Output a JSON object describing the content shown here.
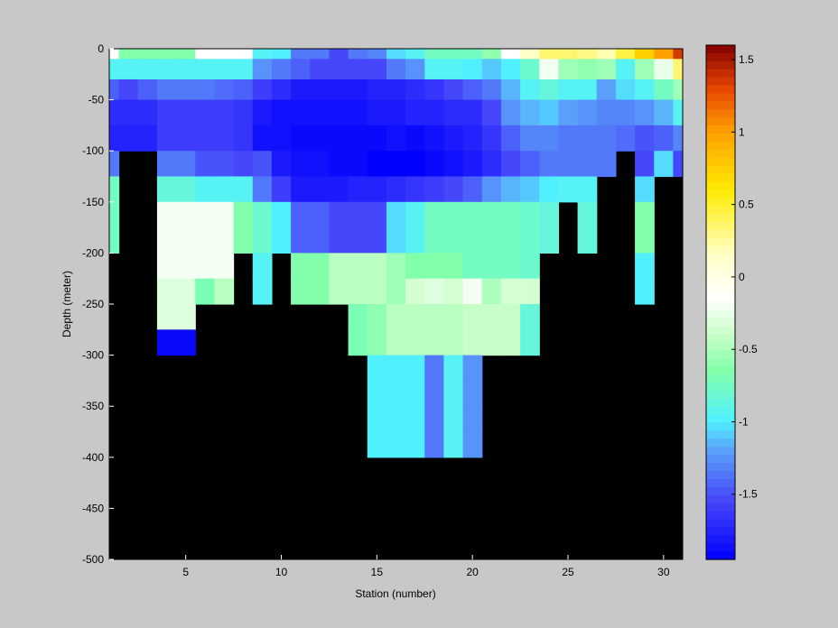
{
  "chart_data": {
    "type": "heatmap",
    "xlabel": "Station (number)",
    "ylabel": "Depth (meter)",
    "xlim": [
      1,
      31
    ],
    "ylim": [
      -500,
      0
    ],
    "xticks": [
      5,
      10,
      15,
      20,
      25,
      30
    ],
    "yticks": [
      0,
      -50,
      -100,
      -150,
      -200,
      -250,
      -300,
      -350,
      -400,
      -450,
      -500
    ],
    "colorbar": {
      "colormap": "jet",
      "clim": [
        -1.95,
        1.6
      ],
      "ticks": [
        1.5,
        1,
        0.5,
        0,
        -0.5,
        -1,
        -1.5
      ]
    },
    "missing_color": "#000000",
    "columns": [
      {
        "station": 1,
        "depths": [
          -5,
          -20,
          -40,
          -70,
          -100,
          -125,
          -150,
          -175
        ],
        "values": [
          -0.15,
          -0.95,
          -1.45,
          -1.7,
          -1.75,
          -1.35,
          -0.75,
          -0.75
        ]
      },
      {
        "station": 2,
        "depths": [
          -5,
          -20,
          -40,
          -70,
          -100
        ],
        "values": [
          -0.65,
          -0.95,
          -1.55,
          -1.7,
          -1.75
        ]
      },
      {
        "station": 3,
        "depths": [
          -5,
          -20,
          -40,
          -70,
          -100
        ],
        "values": [
          -0.65,
          -0.95,
          -1.45,
          -1.7,
          -1.75
        ]
      },
      {
        "station": 4,
        "depths": [
          -5,
          -20,
          -40,
          -70,
          -100,
          -125,
          -150,
          -175,
          -200,
          -225,
          -250,
          -275
        ],
        "values": [
          -0.65,
          -0.95,
          -1.35,
          -1.6,
          -1.6,
          -1.35,
          -0.85,
          -0.2,
          -0.2,
          -0.3,
          -0.3,
          -1.9
        ]
      },
      {
        "station": 5,
        "depths": [
          -5,
          -20,
          -40,
          -70,
          -100,
          -125,
          -150,
          -175,
          -200,
          -225,
          -250,
          -275
        ],
        "values": [
          -0.65,
          -0.95,
          -1.35,
          -1.6,
          -1.6,
          -1.35,
          -0.85,
          -0.2,
          -0.2,
          -0.3,
          -0.3,
          -1.9
        ]
      },
      {
        "station": 6,
        "depths": [
          -5,
          -20,
          -40,
          -70,
          -100,
          -125,
          -150,
          -175,
          -200,
          -225
        ],
        "values": [
          -0.15,
          -0.95,
          -1.35,
          -1.6,
          -1.6,
          -1.5,
          -0.95,
          -0.2,
          -0.2,
          -0.7
        ]
      },
      {
        "station": 7,
        "depths": [
          -5,
          -20,
          -40,
          -70,
          -100,
          -125,
          -150,
          -175,
          -200,
          -225
        ],
        "values": [
          -0.15,
          -0.95,
          -1.4,
          -1.6,
          -1.6,
          -1.5,
          -0.95,
          -0.2,
          -0.2,
          -0.45
        ]
      },
      {
        "station": 8,
        "depths": [
          -5,
          -20,
          -40,
          -70,
          -100,
          -125,
          -150,
          -175
        ],
        "values": [
          -0.15,
          -0.95,
          -1.45,
          -1.65,
          -1.65,
          -1.55,
          -0.95,
          -0.65
        ]
      },
      {
        "station": 9,
        "depths": [
          -5,
          -20,
          -40,
          -70,
          -100,
          -125,
          -150,
          -175,
          -200,
          -225
        ],
        "values": [
          -0.95,
          -1.25,
          -1.6,
          -1.8,
          -1.85,
          -1.5,
          -1.35,
          -0.8,
          -0.95,
          -0.95
        ]
      },
      {
        "station": 10,
        "depths": [
          -5,
          -20,
          -40,
          -70,
          -100,
          -125,
          -150,
          -175
        ],
        "values": [
          -1.0,
          -1.35,
          -1.7,
          -1.85,
          -1.85,
          -1.8,
          -1.6,
          -1.0
        ]
      },
      {
        "station": 11,
        "depths": [
          -5,
          -20,
          -40,
          -70,
          -100,
          -125,
          -150,
          -175,
          -200,
          -225
        ],
        "values": [
          -1.35,
          -1.45,
          -1.8,
          -1.85,
          -1.9,
          -1.85,
          -1.8,
          -1.45,
          -0.65,
          -0.65
        ]
      },
      {
        "station": 12,
        "depths": [
          -5,
          -20,
          -40,
          -70,
          -100,
          -125,
          -150,
          -175,
          -200,
          -225
        ],
        "values": [
          -1.35,
          -1.55,
          -1.8,
          -1.85,
          -1.9,
          -1.85,
          -1.8,
          -1.45,
          -0.65,
          -0.65
        ]
      },
      {
        "station": 13,
        "depths": [
          -5,
          -20,
          -40,
          -70,
          -100,
          -125,
          -150,
          -175,
          -200,
          -225
        ],
        "values": [
          -1.55,
          -1.55,
          -1.8,
          -1.85,
          -1.9,
          -1.9,
          -1.8,
          -1.55,
          -0.45,
          -0.45
        ]
      },
      {
        "station": 14,
        "depths": [
          -5,
          -20,
          -40,
          -70,
          -100,
          -125,
          -150,
          -175,
          -200,
          -225,
          -250,
          -275
        ],
        "values": [
          -1.35,
          -1.55,
          -1.8,
          -1.85,
          -1.9,
          -1.9,
          -1.75,
          -1.55,
          -0.45,
          -0.45,
          -0.7,
          -0.7
        ]
      },
      {
        "station": 15,
        "depths": [
          -5,
          -20,
          -40,
          -70,
          -100,
          -125,
          -150,
          -175,
          -200,
          -225,
          -250,
          -275,
          -300,
          -325,
          -350,
          -375
        ],
        "values": [
          -1.3,
          -1.55,
          -1.75,
          -1.8,
          -1.9,
          -1.95,
          -1.75,
          -1.55,
          -0.45,
          -0.45,
          -0.6,
          -0.6,
          -1.0,
          -1.0,
          -1.0,
          -1.0
        ]
      },
      {
        "station": 16,
        "depths": [
          -5,
          -20,
          -40,
          -70,
          -100,
          -125,
          -150,
          -175,
          -200,
          -225,
          -250,
          -275,
          -300,
          -325,
          -350,
          -375
        ],
        "values": [
          -1.05,
          -1.35,
          -1.75,
          -1.8,
          -1.85,
          -1.95,
          -1.7,
          -1.05,
          -0.55,
          -0.55,
          -0.45,
          -0.45,
          -1.0,
          -1.0,
          -1.0,
          -1.0
        ]
      },
      {
        "station": 17,
        "depths": [
          -5,
          -20,
          -40,
          -70,
          -100,
          -125,
          -150,
          -175,
          -200,
          -225,
          -250,
          -275,
          -300,
          -325,
          -350,
          -375
        ],
        "values": [
          -0.95,
          -1.25,
          -1.7,
          -1.75,
          -1.9,
          -1.95,
          -1.65,
          -0.95,
          -0.65,
          -0.35,
          -0.45,
          -0.45,
          -1.0,
          -1.0,
          -1.0,
          -1.0
        ]
      },
      {
        "station": 18,
        "depths": [
          -5,
          -20,
          -40,
          -70,
          -100,
          -125,
          -150,
          -175,
          -200,
          -225,
          -250,
          -275,
          -300,
          -325,
          -350,
          -375
        ],
        "values": [
          -0.75,
          -0.95,
          -1.65,
          -1.75,
          -1.85,
          -1.9,
          -1.6,
          -0.75,
          -0.65,
          -0.3,
          -0.45,
          -0.45,
          -1.35,
          -1.35,
          -1.35,
          -1.35
        ]
      },
      {
        "station": 19,
        "depths": [
          -5,
          -20,
          -40,
          -70,
          -100,
          -125,
          -150,
          -175,
          -200,
          -225,
          -250,
          -275,
          -300,
          -325,
          -350,
          -375
        ],
        "values": [
          -0.75,
          -0.95,
          -1.55,
          -1.7,
          -1.8,
          -1.85,
          -1.55,
          -0.75,
          -0.65,
          -0.35,
          -0.45,
          -0.45,
          -0.95,
          -0.95,
          -0.95,
          -0.95
        ]
      },
      {
        "station": 20,
        "depths": [
          -5,
          -20,
          -40,
          -70,
          -100,
          -125,
          -150,
          -175,
          -200,
          -225,
          -250,
          -275,
          -300,
          -325,
          -350,
          -375
        ],
        "values": [
          -0.75,
          -1.0,
          -1.45,
          -1.7,
          -1.75,
          -1.8,
          -1.45,
          -0.75,
          -0.75,
          -0.2,
          -0.4,
          -0.4,
          -1.25,
          -1.25,
          -1.25,
          -1.25
        ]
      },
      {
        "station": 21,
        "depths": [
          -5,
          -20,
          -40,
          -70,
          -100,
          -125,
          -150,
          -175,
          -200,
          -225,
          -250,
          -275
        ],
        "values": [
          -0.6,
          -1.1,
          -1.35,
          -1.55,
          -1.65,
          -1.7,
          -1.25,
          -0.75,
          -0.75,
          -0.5,
          -0.4,
          -0.4
        ]
      },
      {
        "station": 22,
        "depths": [
          -5,
          -20,
          -40,
          -70,
          -100,
          -125,
          -150,
          -175,
          -200,
          -225,
          -250,
          -275
        ],
        "values": [
          -0.15,
          -1.0,
          -1.15,
          -1.25,
          -1.45,
          -1.55,
          -1.15,
          -0.75,
          -0.75,
          -0.35,
          -0.4,
          -0.4
        ]
      },
      {
        "station": 23,
        "depths": [
          -5,
          -20,
          -40,
          -70,
          -100,
          -125,
          -150,
          -175,
          -200,
          -225,
          -250,
          -275
        ],
        "values": [
          0.15,
          -0.8,
          -0.95,
          -1.15,
          -1.3,
          -1.45,
          -1.1,
          -0.8,
          -0.8,
          -0.35,
          -0.85,
          -0.85
        ]
      },
      {
        "station": 24,
        "depths": [
          -5,
          -20,
          -40,
          -70,
          -100,
          -125,
          -150,
          -175
        ],
        "values": [
          0.35,
          -0.2,
          -0.85,
          -1.1,
          -1.3,
          -1.35,
          -1.0,
          -0.85
        ]
      },
      {
        "station": 25,
        "depths": [
          -5,
          -20,
          -40,
          -70,
          -100,
          -125,
          -150
        ],
        "values": [
          0.35,
          -0.55,
          -0.95,
          -1.2,
          -1.35,
          -1.35,
          -0.95
        ]
      },
      {
        "station": 26,
        "depths": [
          -5,
          -20,
          -40,
          -70,
          -100,
          -125,
          -150,
          -175
        ],
        "values": [
          0.3,
          -0.6,
          -0.95,
          -1.25,
          -1.35,
          -1.35,
          -0.95,
          -0.85
        ]
      },
      {
        "station": 27,
        "depths": [
          -5,
          -20,
          -40,
          -70,
          -100,
          -125
        ],
        "values": [
          0.2,
          -0.55,
          -1.2,
          -1.3,
          -1.35,
          -1.35
        ]
      },
      {
        "station": 28,
        "depths": [
          -5,
          -20,
          -40,
          -70,
          -100
        ],
        "values": [
          0.45,
          -0.95,
          -1.05,
          -1.3,
          -1.4
        ]
      },
      {
        "station": 29,
        "depths": [
          -5,
          -20,
          -40,
          -70,
          -100,
          -125,
          -150,
          -175,
          -200,
          -225
        ],
        "values": [
          0.75,
          -0.55,
          -0.95,
          -1.25,
          -1.5,
          -1.55,
          -1.05,
          -0.65,
          -1.0,
          -1.0
        ]
      },
      {
        "station": 30,
        "depths": [
          -5,
          -20,
          -40,
          -70,
          -100,
          -125
        ],
        "values": [
          1.0,
          -0.25,
          -0.75,
          -1.15,
          -1.45,
          -1.05
        ]
      },
      {
        "station": 31,
        "depths": [
          -5,
          -20,
          -40,
          -70,
          -100,
          -125
        ],
        "values": [
          1.35,
          0.35,
          -0.55,
          -0.95,
          -1.3,
          -1.55
        ]
      }
    ]
  }
}
